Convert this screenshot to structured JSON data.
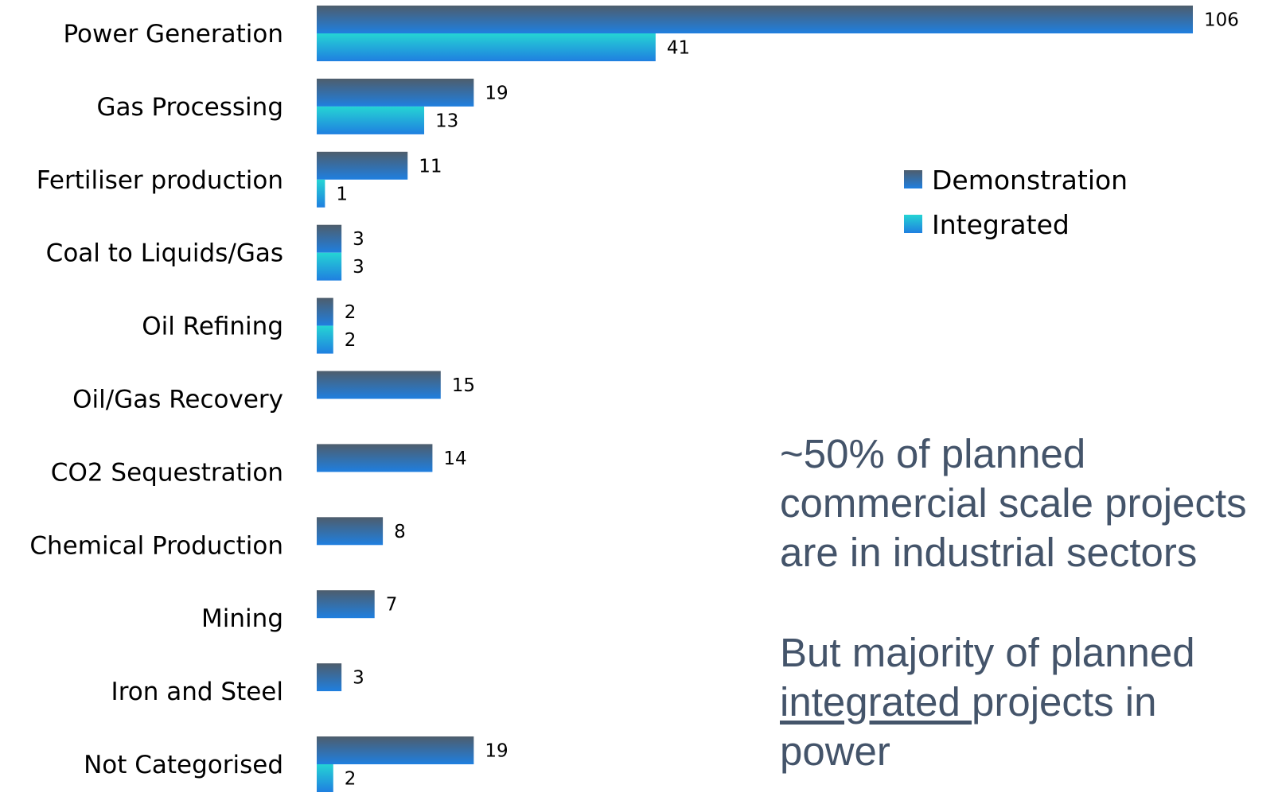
{
  "chart_data": {
    "type": "bar",
    "orientation": "horizontal",
    "categories": [
      "Power Generation",
      "Gas Processing",
      "Fertiliser production",
      "Coal to Liquids/Gas",
      "Oil Refining",
      "Oil/Gas Recovery",
      "CO2 Sequestration",
      "Chemical Production",
      "Mining",
      "Iron and Steel",
      "Not Categorised"
    ],
    "series": [
      {
        "name": "Demonstration",
        "values": [
          106,
          19,
          11,
          3,
          2,
          15,
          14,
          8,
          7,
          3,
          19
        ],
        "labels": [
          "106",
          "19",
          "11",
          "3",
          "2",
          "15",
          "14",
          "8",
          "7",
          "3",
          "19"
        ],
        "color_top": "#4e5d6c",
        "color_bottom": "#1f7fe0"
      },
      {
        "name": "Integrated",
        "values": [
          41,
          13,
          1,
          3,
          2,
          null,
          null,
          null,
          null,
          null,
          2
        ],
        "labels": [
          "41",
          "13",
          "1",
          "3",
          "2",
          "",
          "",
          "",
          "",
          "",
          "2"
        ],
        "color_top": "#25d4d4",
        "color_bottom": "#1f7fe0"
      }
    ],
    "xlim": [
      0,
      106
    ],
    "grid": false,
    "legend_position": "right",
    "title": "",
    "xlabel": "",
    "ylabel": ""
  },
  "annotations": {
    "first": {
      "lines": [
        "~50% of planned",
        "commercial scale projects",
        "are in industrial sectors"
      ]
    },
    "second": {
      "line1": "But majority of planned",
      "line2_underlined": "integrated ",
      "line2_rest": "projects in",
      "line3": "power"
    },
    "text_color": "#44546a"
  }
}
